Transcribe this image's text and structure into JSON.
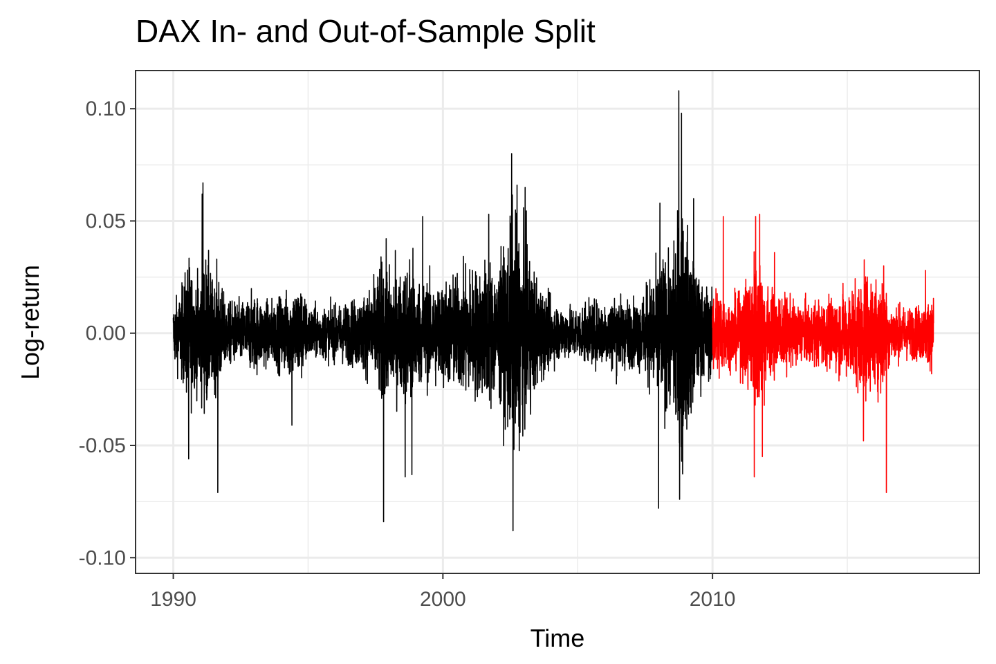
{
  "chart_data": {
    "type": "line",
    "title": "DAX In- and Out-of-Sample Split",
    "xlabel": "Time",
    "ylabel": "Log-return",
    "xlim": [
      1988.6,
      2019.9
    ],
    "ylim": [
      -0.107,
      0.117
    ],
    "x_ticks": [
      1990,
      2000,
      2010
    ],
    "x_tick_labels": [
      "1990",
      "2000",
      "2010"
    ],
    "y_ticks": [
      -0.1,
      -0.05,
      0.0,
      0.05,
      0.1
    ],
    "y_tick_labels": [
      "-0.10",
      "-0.05",
      "0.00",
      "0.05",
      "0.10"
    ],
    "grid": true,
    "legend": "none",
    "colors": {
      "in_sample": "#000000",
      "out_of_sample": "#ff0000"
    },
    "series": [
      {
        "color": "#000000",
        "x": [
          1990.0,
          1990.25,
          1990.5,
          1990.6,
          1990.75,
          1991.0,
          1991.1,
          1991.25,
          1991.5,
          1991.65,
          1991.85,
          1992.0,
          1992.5,
          1993.0,
          1993.5,
          1994.0,
          1994.5,
          1994.7,
          1995.0,
          1995.5,
          1996.0,
          1996.5,
          1997.0,
          1997.5,
          1997.75,
          1998.0,
          1998.5,
          1998.7,
          1998.85,
          1999.0,
          1999.5,
          2000.0,
          2000.5,
          2001.0,
          2001.5,
          2001.7,
          2002.0,
          2002.25,
          2002.55,
          2002.75,
          2003.0,
          2003.25,
          2003.5,
          2004.0,
          2004.5,
          2005.0,
          2005.5,
          2006.0,
          2006.4,
          2007.0,
          2007.5,
          2007.6,
          2008.0,
          2008.2,
          2008.5,
          2008.75,
          2008.85,
          2009.0,
          2009.25,
          2009.5,
          2010.0
        ],
        "amplitude": [
          0.012,
          0.015,
          0.025,
          0.03,
          0.02,
          0.022,
          0.03,
          0.03,
          0.018,
          0.025,
          0.015,
          0.012,
          0.012,
          0.015,
          0.012,
          0.014,
          0.018,
          0.02,
          0.01,
          0.01,
          0.01,
          0.012,
          0.014,
          0.02,
          0.03,
          0.025,
          0.022,
          0.03,
          0.035,
          0.02,
          0.02,
          0.02,
          0.022,
          0.025,
          0.025,
          0.03,
          0.025,
          0.03,
          0.045,
          0.045,
          0.035,
          0.03,
          0.02,
          0.012,
          0.01,
          0.01,
          0.012,
          0.012,
          0.015,
          0.012,
          0.015,
          0.02,
          0.025,
          0.03,
          0.025,
          0.05,
          0.055,
          0.04,
          0.03,
          0.02,
          0.016
        ],
        "spikes": [
          [
            1991.07,
            0.062
          ],
          [
            1991.65,
            -0.071
          ],
          [
            1990.57,
            -0.056
          ],
          [
            1991.1,
            0.067
          ],
          [
            1994.4,
            -0.041
          ],
          [
            1997.8,
            -0.084
          ],
          [
            1998.6,
            -0.064
          ],
          [
            1998.85,
            -0.063
          ],
          [
            1999.25,
            0.052
          ],
          [
            2001.7,
            -0.098
          ],
          [
            2001.7,
            0.053
          ],
          [
            2002.55,
            0.08
          ],
          [
            2002.6,
            -0.088
          ],
          [
            2002.75,
            0.066
          ],
          [
            2003.05,
            0.065
          ],
          [
            2008.0,
            -0.078
          ],
          [
            2008.05,
            0.058
          ],
          [
            2008.75,
            0.108
          ],
          [
            2008.85,
            0.098
          ],
          [
            2008.78,
            -0.074
          ],
          [
            2009.3,
            0.06
          ]
        ]
      },
      {
        "color": "#ff0000",
        "x": [
          2010.0,
          2010.3,
          2010.5,
          2011.0,
          2011.5,
          2011.6,
          2011.7,
          2011.9,
          2012.0,
          2012.5,
          2013.0,
          2013.5,
          2014.0,
          2014.5,
          2014.8,
          2015.0,
          2015.5,
          2015.6,
          2016.0,
          2016.3,
          2016.5,
          2017.0,
          2017.5,
          2018.0,
          2018.2
        ],
        "amplitude": [
          0.016,
          0.02,
          0.012,
          0.014,
          0.028,
          0.035,
          0.032,
          0.025,
          0.018,
          0.015,
          0.012,
          0.012,
          0.012,
          0.014,
          0.016,
          0.016,
          0.022,
          0.025,
          0.02,
          0.025,
          0.012,
          0.01,
          0.01,
          0.012,
          0.014
        ],
        "spikes": [
          [
            2010.4,
            0.052
          ],
          [
            2011.55,
            -0.064
          ],
          [
            2011.6,
            0.052
          ],
          [
            2011.75,
            0.053
          ],
          [
            2011.85,
            -0.055
          ],
          [
            2012.3,
            0.036
          ],
          [
            2015.6,
            0.049
          ],
          [
            2015.6,
            -0.048
          ],
          [
            2016.45,
            -0.071
          ],
          [
            2016.35,
            0.03
          ],
          [
            2017.9,
            0.028
          ]
        ]
      }
    ]
  }
}
